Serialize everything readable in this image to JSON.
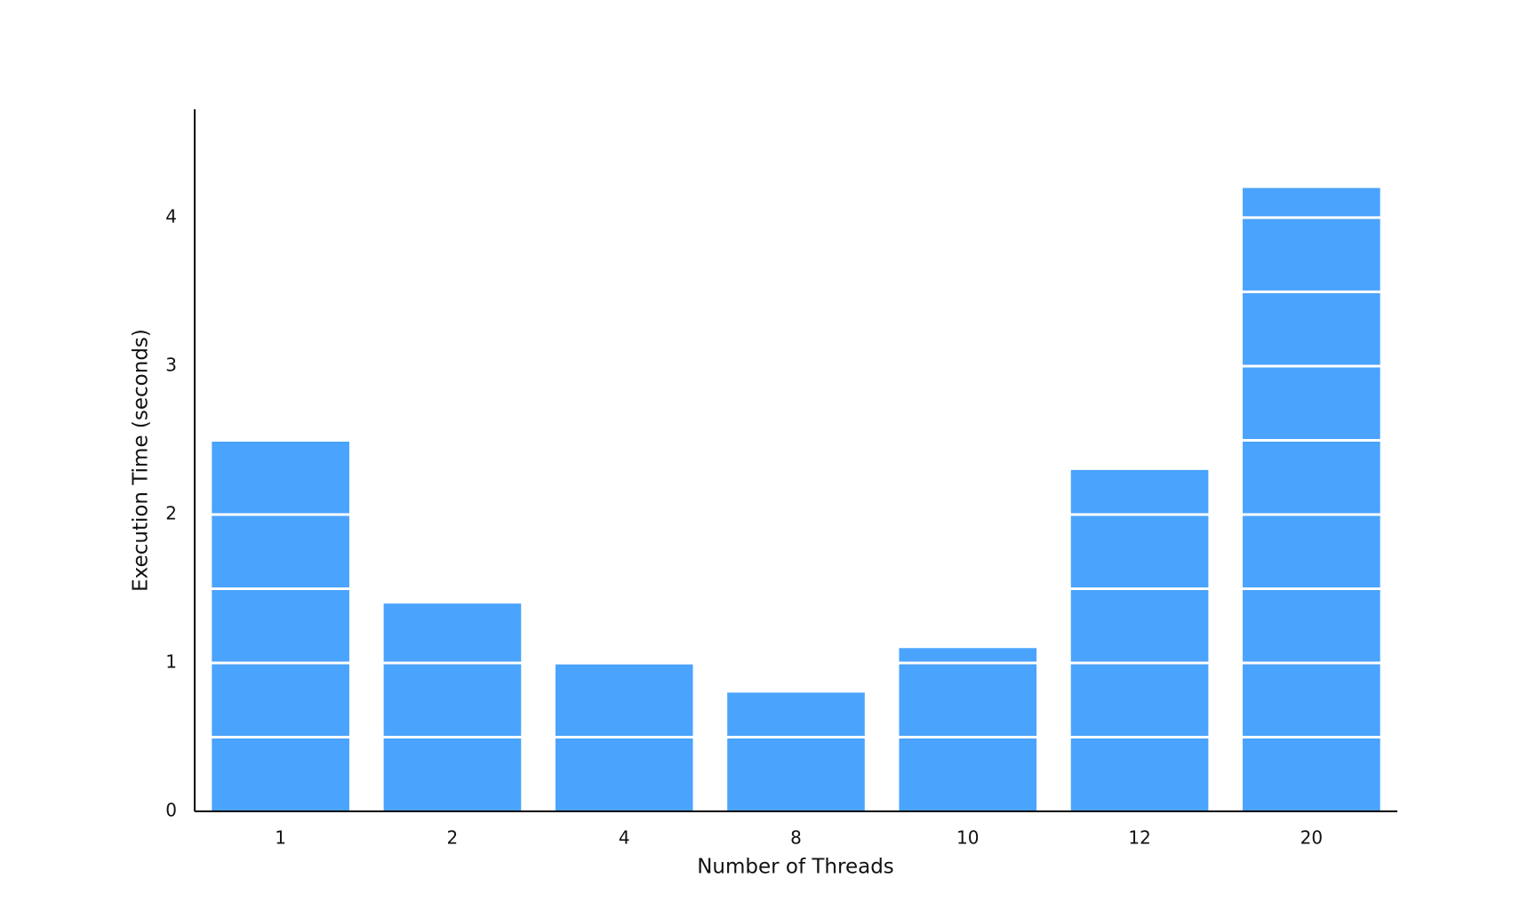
{
  "chart_data": {
    "type": "bar",
    "x_label": "Number of Threads",
    "y_label": "Execution Time (seconds)",
    "categories": [
      "1",
      "2",
      "4",
      "8",
      "10",
      "12",
      "20"
    ],
    "values": [
      2.5,
      1.4,
      0.99,
      0.8,
      1.1,
      2.3,
      4.2
    ],
    "color": "#4aa3fd",
    "ylim": [
      0,
      4.73
    ],
    "yticks": [
      0,
      1,
      2,
      3,
      4
    ],
    "grid": true,
    "grid_color": "#ffffff",
    "ygrid": [
      0.5,
      1,
      1.5,
      2,
      2.5,
      3,
      3.5,
      4
    ]
  }
}
